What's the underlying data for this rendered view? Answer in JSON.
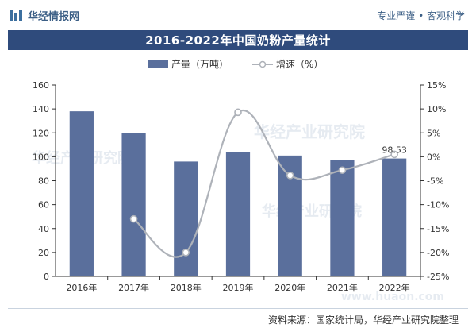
{
  "brand": {
    "name": "华经情报网",
    "tagline": "专业严谨 • 客观科学"
  },
  "source": "资料来源：国家统计局，华经产业研究院整理",
  "watermarks": [
    "华经产业研究院",
    "华经产业研究院",
    "华经产业研究院",
    "www.huaon.com"
  ],
  "colors": {
    "bar": "#5a6f9c",
    "line": "#aeb2b9",
    "marker_fill": "#ffffff",
    "title_bg": "#2f4b7c",
    "axis": "#333333"
  },
  "chart_data": {
    "type": "bar+line",
    "title": "2016-2022年中国奶粉产量统计",
    "categories": [
      "2016年",
      "2017年",
      "2018年",
      "2019年",
      "2020年",
      "2021年",
      "2022年"
    ],
    "series": [
      {
        "name": "产量（万吨）",
        "type": "bar",
        "axis": "left",
        "values": [
          138,
          120,
          96,
          104,
          101,
          97,
          98.53
        ]
      },
      {
        "name": "增速（%）",
        "type": "line",
        "axis": "right",
        "values": [
          null,
          -13.0,
          -20.0,
          9.3,
          -3.9,
          -2.8,
          0.5
        ]
      }
    ],
    "data_labels": [
      {
        "category": "2022年",
        "text": "98.53"
      }
    ],
    "y_left": {
      "min": 0,
      "max": 160,
      "step": 20,
      "ticks": [
        "0",
        "20",
        "40",
        "60",
        "80",
        "100",
        "120",
        "140",
        "160"
      ]
    },
    "y_right": {
      "min": -25,
      "max": 15,
      "step": 5,
      "ticks": [
        "-25%",
        "-20%",
        "-15%",
        "-10%",
        "-5%",
        "0%",
        "5%",
        "10%",
        "15%"
      ]
    },
    "legend_position": "top-center",
    "grid": false
  }
}
